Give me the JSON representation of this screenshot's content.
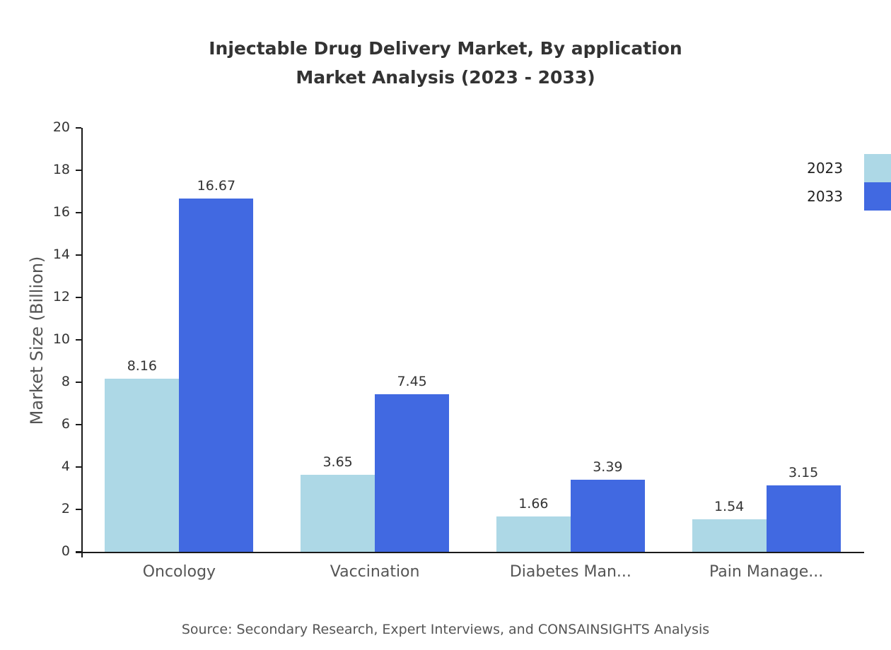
{
  "title": {
    "line1": "Injectable Drug Delivery Market, By application",
    "line2": "Market Analysis (2023 - 2033)"
  },
  "source": "Source: Secondary Research, Expert Interviews, and CONSAINSIGHTS Analysis",
  "colors": {
    "series_2023": "#ADD8E6",
    "series_2033": "#4169E1",
    "axis": "#1a1a1a",
    "title_text": "#333333",
    "label_text": "#555555"
  },
  "chart_data": {
    "type": "bar",
    "categories": [
      "Oncology",
      "Vaccination",
      "Diabetes Man...",
      "Pain Manage..."
    ],
    "series": [
      {
        "name": "2023",
        "color": "#ADD8E6",
        "values": [
          8.16,
          3.65,
          1.66,
          1.54
        ]
      },
      {
        "name": "2033",
        "color": "#4169E1",
        "values": [
          16.67,
          7.45,
          3.39,
          3.15
        ]
      }
    ],
    "title": "Injectable Drug Delivery Market, By application Market Analysis (2023 - 2033)",
    "xlabel": "",
    "ylabel": "Market Size (Billion)",
    "ylim": [
      0,
      20
    ],
    "ytick_step": 2,
    "grid": false,
    "legend_position": "top-right",
    "value_label_decimals": 2
  }
}
